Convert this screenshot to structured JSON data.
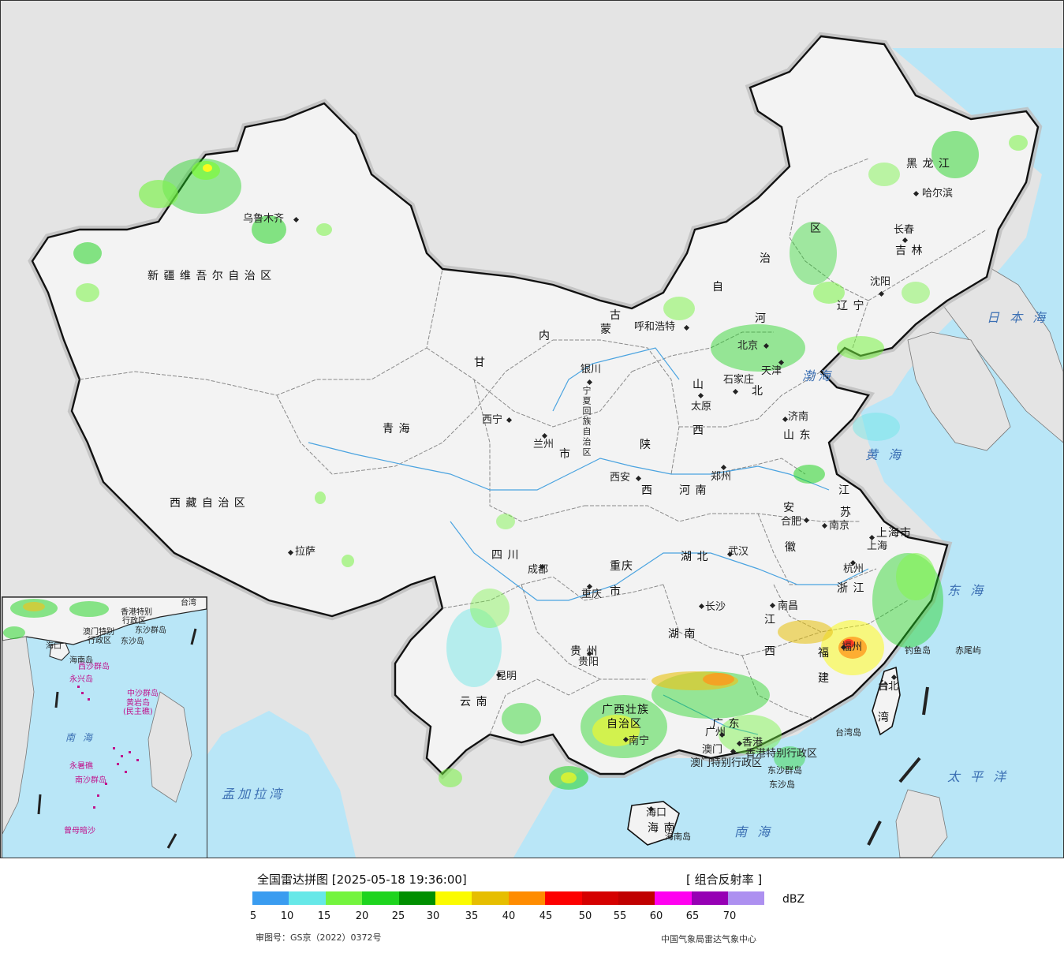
{
  "map": {
    "provinces": [
      {
        "text": "新 疆 维 吾 尔 自 治 区",
        "cls": "big"
      },
      {
        "text": "西 藏 自 治 区",
        "cls": "big"
      },
      {
        "text": "青        海",
        "cls": "big"
      },
      {
        "text": "甘",
        "cls": "big"
      },
      {
        "text": "内",
        "cls": "big"
      },
      {
        "text": "蒙",
        "cls": "big"
      },
      {
        "text": "古",
        "cls": "big"
      },
      {
        "text": "自",
        "cls": "big"
      },
      {
        "text": "治",
        "cls": "big"
      },
      {
        "text": "区",
        "cls": "big"
      },
      {
        "text": "黑  龙  江",
        "cls": "big"
      },
      {
        "text": "吉  林",
        "cls": "big"
      },
      {
        "text": "辽  宁",
        "cls": "big"
      },
      {
        "text": "河",
        "cls": "big"
      },
      {
        "text": "北",
        "cls": "big"
      },
      {
        "text": "山",
        "cls": "big"
      },
      {
        "text": "西",
        "cls": "big"
      },
      {
        "text": "山  东",
        "cls": "big"
      },
      {
        "text": "陕",
        "cls": "big"
      },
      {
        "text": "西",
        "cls": "big"
      },
      {
        "text": "宁夏回族自治区",
        "cls": "small vert"
      },
      {
        "text": "河  南",
        "cls": "big"
      },
      {
        "text": "江",
        "cls": "big"
      },
      {
        "text": "苏",
        "cls": "big"
      },
      {
        "text": "安",
        "cls": "big"
      },
      {
        "text": "徽",
        "cls": "big"
      },
      {
        "text": "上海市",
        "cls": "big"
      },
      {
        "text": "浙  江",
        "cls": "big"
      },
      {
        "text": "四    川",
        "cls": "big"
      },
      {
        "text": "重庆",
        "cls": "big"
      },
      {
        "text": "市",
        "cls": "big"
      },
      {
        "text": "湖    北",
        "cls": "big"
      },
      {
        "text": "湖    南",
        "cls": "big"
      },
      {
        "text": "江",
        "cls": "big"
      },
      {
        "text": "西",
        "cls": "big"
      },
      {
        "text": "福",
        "cls": "big"
      },
      {
        "text": "建",
        "cls": "big"
      },
      {
        "text": "贵    州",
        "cls": "big"
      },
      {
        "text": "云    南",
        "cls": "big"
      },
      {
        "text": "广西壮族",
        "cls": "big"
      },
      {
        "text": "自治区",
        "cls": "big"
      },
      {
        "text": "广    东",
        "cls": "big"
      },
      {
        "text": "台",
        "cls": "big"
      },
      {
        "text": "湾",
        "cls": "big"
      },
      {
        "text": "海  南",
        "cls": "big"
      },
      {
        "text": "香港特别行政区",
        "cls": ""
      },
      {
        "text": "澳门特别行政区",
        "cls": ""
      },
      {
        "text": "市",
        "cls": "big"
      }
    ],
    "cities": [
      {
        "name": "乌鲁木齐"
      },
      {
        "name": "拉萨"
      },
      {
        "name": "西宁"
      },
      {
        "name": "兰州"
      },
      {
        "name": "银川"
      },
      {
        "name": "呼和浩特"
      },
      {
        "name": "北京"
      },
      {
        "name": "天津"
      },
      {
        "name": "石家庄"
      },
      {
        "name": "太原"
      },
      {
        "name": "济南"
      },
      {
        "name": "沈阳"
      },
      {
        "name": "长春"
      },
      {
        "name": "哈尔滨"
      },
      {
        "name": "郑州"
      },
      {
        "name": "西安"
      },
      {
        "name": "合肥"
      },
      {
        "name": "南京"
      },
      {
        "name": "上海"
      },
      {
        "name": "杭州"
      },
      {
        "name": "武汉"
      },
      {
        "name": "成都"
      },
      {
        "name": "重庆"
      },
      {
        "name": "长沙"
      },
      {
        "name": "南昌"
      },
      {
        "name": "福州"
      },
      {
        "name": "贵阳"
      },
      {
        "name": "昆明"
      },
      {
        "name": "南宁"
      },
      {
        "name": "广州"
      },
      {
        "name": "澳门"
      },
      {
        "name": "香港"
      },
      {
        "name": "台北"
      },
      {
        "name": "海口"
      }
    ],
    "features": [
      {
        "text": "日 本 海",
        "cls": "sea"
      },
      {
        "text": "渤海",
        "cls": "sea"
      },
      {
        "text": "黄 海",
        "cls": "sea"
      },
      {
        "text": "东 海",
        "cls": "sea"
      },
      {
        "text": "太 平 洋",
        "cls": "sea"
      },
      {
        "text": "南      海",
        "cls": "sea"
      },
      {
        "text": "孟加拉湾",
        "cls": "sea"
      },
      {
        "text": "钓鱼岛",
        "cls": "small"
      },
      {
        "text": "赤尾屿",
        "cls": "small"
      },
      {
        "text": "台湾岛",
        "cls": "small"
      },
      {
        "text": "东沙群岛",
        "cls": "small"
      },
      {
        "text": "东沙岛",
        "cls": "small"
      },
      {
        "text": "海南岛",
        "cls": "small"
      }
    ]
  },
  "inset": {
    "labels": [
      {
        "text": "香港特别",
        "cls": ""
      },
      {
        "text": "行政区",
        "cls": ""
      },
      {
        "text": "澳门特别",
        "cls": ""
      },
      {
        "text": "行政区",
        "cls": ""
      },
      {
        "text": "台湾",
        "cls": ""
      },
      {
        "text": "东沙群岛",
        "cls": ""
      },
      {
        "text": "东沙岛",
        "cls": ""
      },
      {
        "text": "海口",
        "cls": ""
      },
      {
        "text": "海南岛",
        "cls": ""
      },
      {
        "text": "西沙群岛",
        "cls": "pink"
      },
      {
        "text": "永兴岛",
        "cls": "pink"
      },
      {
        "text": "中沙群岛",
        "cls": "pink"
      },
      {
        "text": "黄岩岛",
        "cls": "pink"
      },
      {
        "text": "(民主礁)",
        "cls": "pink"
      },
      {
        "text": "南        海",
        "cls": "sea"
      },
      {
        "text": "永暑礁",
        "cls": "pink"
      },
      {
        "text": "南沙群岛",
        "cls": "pink"
      },
      {
        "text": "曾母暗沙",
        "cls": "pink"
      }
    ]
  },
  "legend": {
    "title": "全国雷达拼图 [2025-05-18 19:36:00]",
    "product": "[ 组合反射率 ]",
    "unit": "dBZ",
    "colors": [
      "#3a9cf0",
      "#67e8e8",
      "#74f43e",
      "#1ed41e",
      "#008f00",
      "#fbfb00",
      "#e6be00",
      "#ff8c00",
      "#fd0000",
      "#d50000",
      "#c00000",
      "#ff00f0",
      "#9600b4",
      "#ad90f0"
    ],
    "ticks": [
      "5",
      "10",
      "15",
      "20",
      "25",
      "30",
      "35",
      "40",
      "45",
      "50",
      "55",
      "60",
      "65",
      "70"
    ],
    "approval": "审图号：GS京（2022）0372号",
    "producer": "中国气象局雷达气象中心"
  }
}
